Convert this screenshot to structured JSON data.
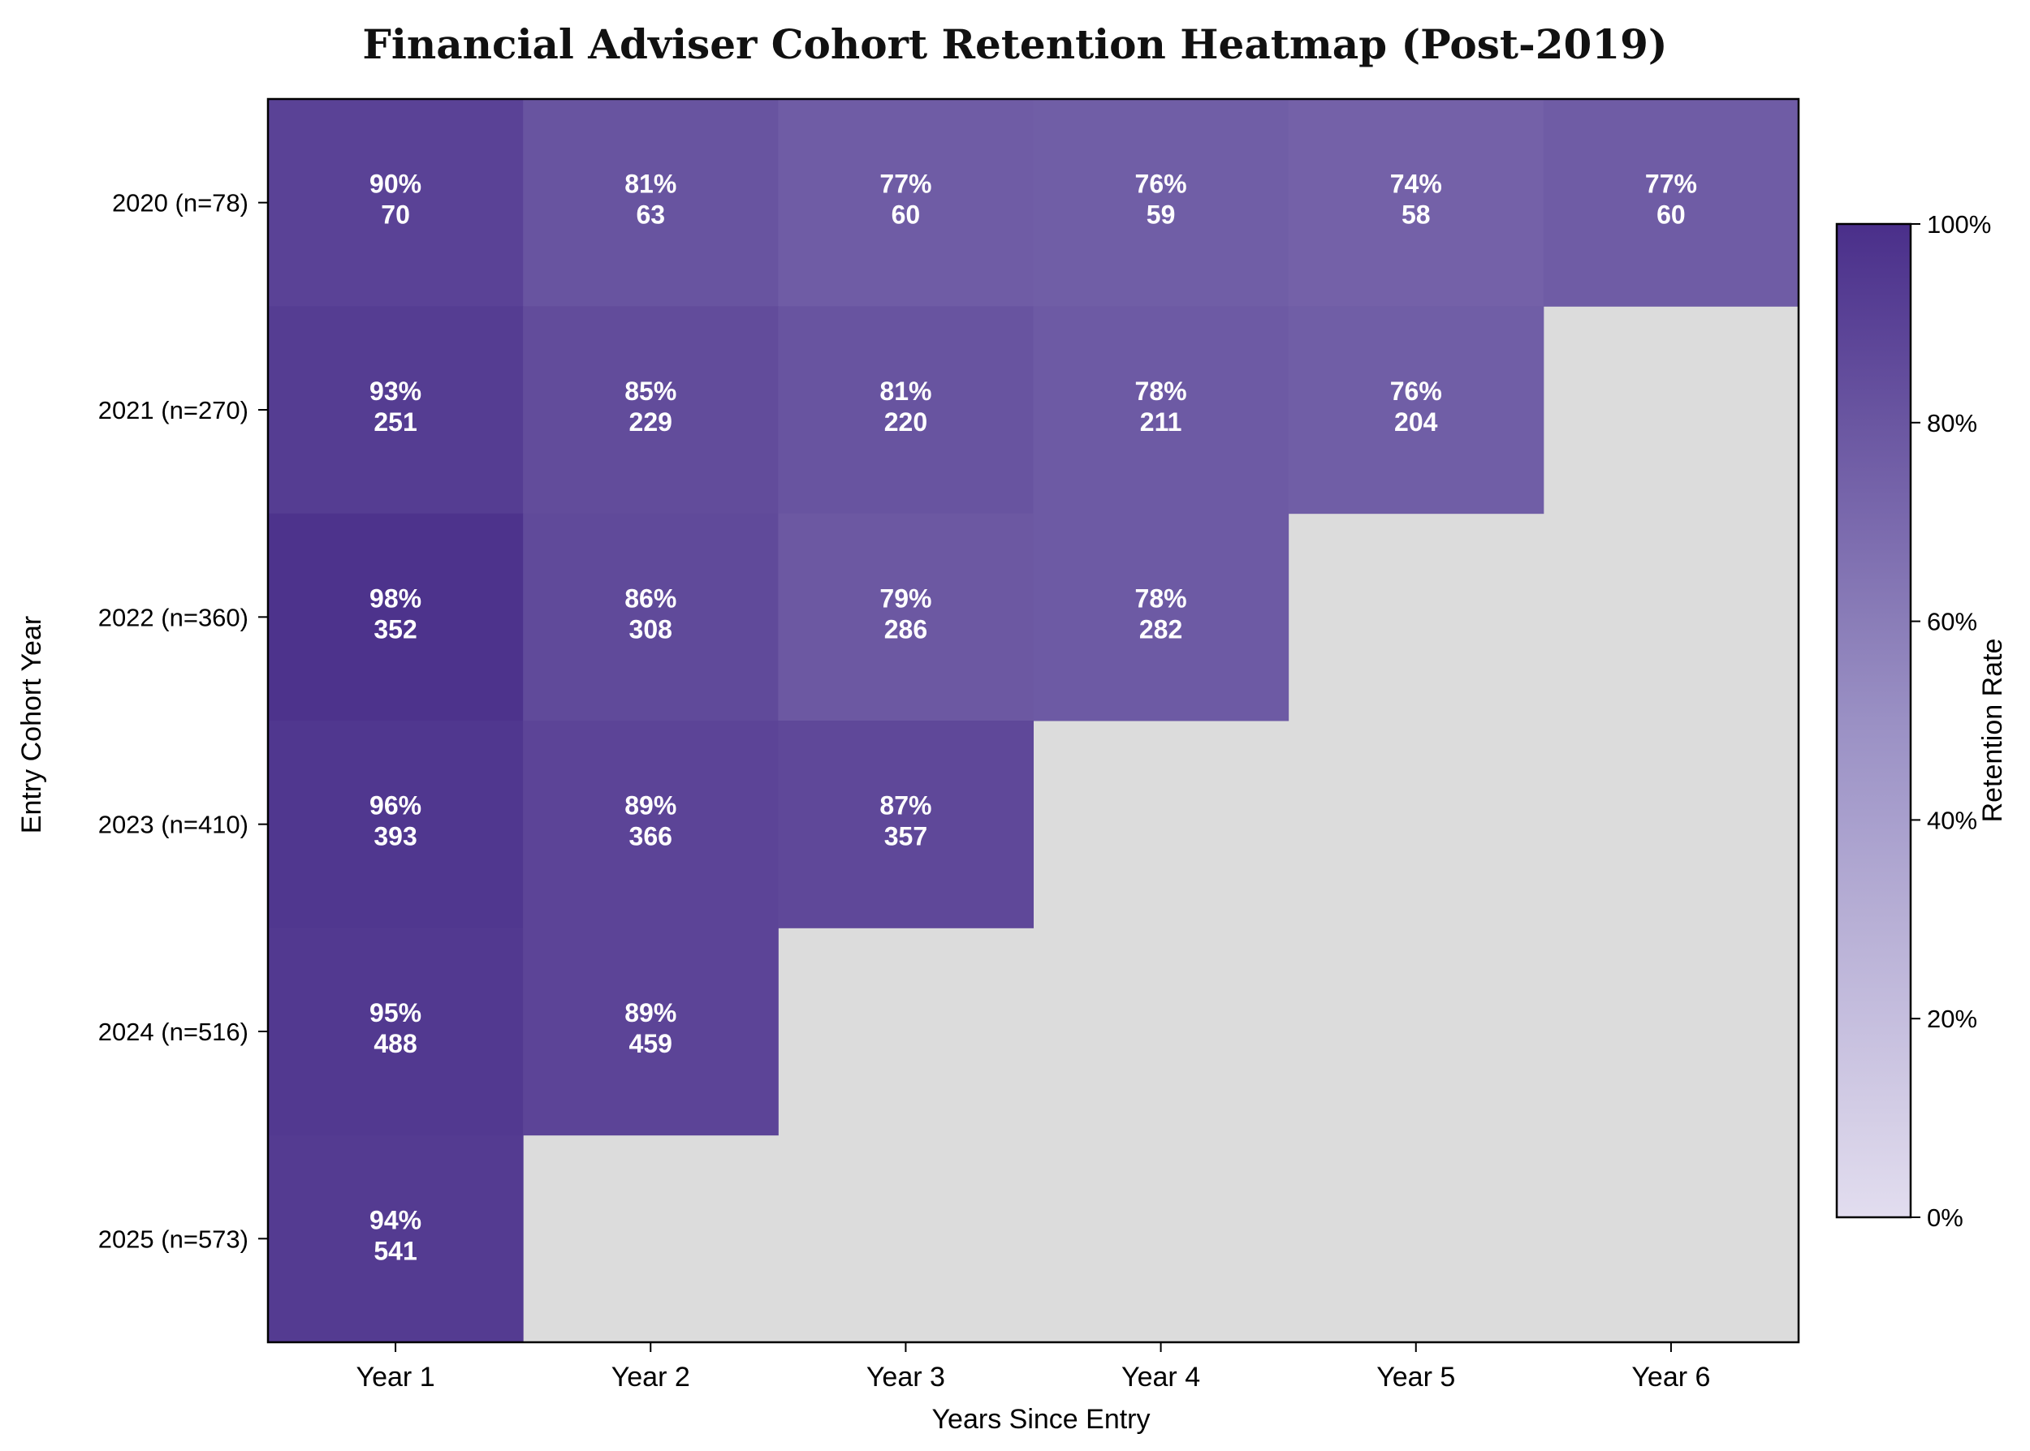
{
  "chart_data": {
    "type": "heatmap",
    "title": "Financial Adviser Cohort Retention Heatmap (Post-2019)",
    "xlabel": "Years Since Entry",
    "ylabel": "Entry Cohort Year",
    "x_categories": [
      "Year 1",
      "Year 2",
      "Year 3",
      "Year 4",
      "Year 5",
      "Year 6"
    ],
    "y_categories": [
      "2020  (n=78)",
      "2021  (n=270)",
      "2022  (n=360)",
      "2023  (n=410)",
      "2024  (n=516)",
      "2025  (n=573)"
    ],
    "values": [
      [
        0.9,
        0.81,
        0.77,
        0.76,
        0.74,
        0.77
      ],
      [
        0.93,
        0.85,
        0.81,
        0.78,
        0.76,
        null
      ],
      [
        0.98,
        0.86,
        0.79,
        0.78,
        null,
        null
      ],
      [
        0.96,
        0.89,
        0.87,
        null,
        null,
        null
      ],
      [
        0.95,
        0.89,
        null,
        null,
        null,
        null
      ],
      [
        0.94,
        null,
        null,
        null,
        null,
        null
      ]
    ],
    "cell_labels": [
      [
        [
          "90%",
          "70"
        ],
        [
          "81%",
          "63"
        ],
        [
          "77%",
          "60"
        ],
        [
          "76%",
          "59"
        ],
        [
          "74%",
          "58"
        ],
        [
          "77%",
          "60"
        ]
      ],
      [
        [
          "93%",
          "251"
        ],
        [
          "85%",
          "229"
        ],
        [
          "81%",
          "220"
        ],
        [
          "78%",
          "211"
        ],
        [
          "76%",
          "204"
        ],
        null
      ],
      [
        [
          "98%",
          "352"
        ],
        [
          "86%",
          "308"
        ],
        [
          "79%",
          "286"
        ],
        [
          "78%",
          "282"
        ],
        null,
        null
      ],
      [
        [
          "96%",
          "393"
        ],
        [
          "89%",
          "366"
        ],
        [
          "87%",
          "357"
        ],
        null,
        null,
        null
      ],
      [
        [
          "95%",
          "488"
        ],
        [
          "89%",
          "459"
        ],
        null,
        null,
        null,
        null
      ],
      [
        [
          "94%",
          "541"
        ],
        null,
        null,
        null,
        null,
        null
      ]
    ],
    "colorbar": {
      "label": "Retention Rate",
      "range": [
        0,
        1
      ],
      "ticks": [
        "0%",
        "20%",
        "40%",
        "60%",
        "80%",
        "100%"
      ],
      "tick_values": [
        0,
        0.2,
        0.4,
        0.6,
        0.8,
        1.0
      ],
      "color_low": "#e2ddef",
      "color_mid": "#9a90c4",
      "color_high": "#4a2f8a"
    },
    "missing_color": "#dcdcdc",
    "grid": false
  }
}
